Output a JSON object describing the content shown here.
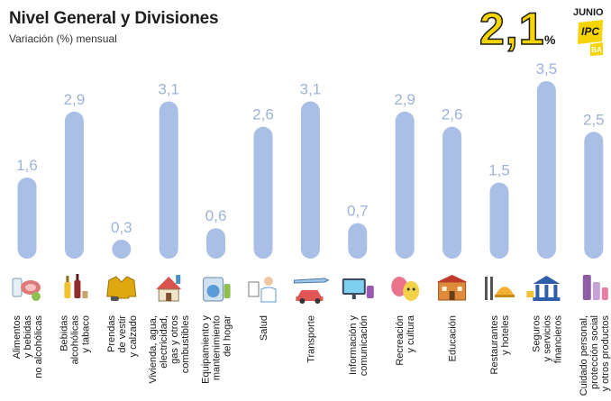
{
  "header": {
    "title": "Nivel General y Divisiones",
    "subtitle": "Variación (%) mensual",
    "headline_value": "2,1",
    "headline_unit": "%",
    "month": "JUNIO",
    "logo_text": "IPC",
    "logo_sub": "BA"
  },
  "colors": {
    "bar": "#a9bfe6",
    "value_text": "#9db3d8",
    "headline": "#f5d400",
    "logo": "#f5d400"
  },
  "chart_data": {
    "type": "bar",
    "title": "Nivel General y Divisiones",
    "subtitle": "Variación (%) mensual",
    "ylabel": "",
    "ylim": [
      0,
      3.5
    ],
    "grid": false,
    "categories": [
      [
        "Alimentos",
        "y bebidas",
        "no alcohólicas"
      ],
      [
        "Bebidas",
        "alcohólicas",
        "y tabaco"
      ],
      [
        "Prendas",
        "de vestir",
        "y calzado"
      ],
      [
        "Vivienda, agua,",
        "electricidad,",
        "gas y otros",
        "combustibles"
      ],
      [
        "Equipamiento y",
        "mantenimiento",
        "del hogar"
      ],
      [
        "Salud"
      ],
      [
        "Transporte"
      ],
      [
        "Información y",
        "comunicación"
      ],
      [
        "Recreación",
        "y cultura"
      ],
      [
        "Educación"
      ],
      [
        "Restaurantes",
        "y hoteles"
      ],
      [
        "Seguros",
        "y servicios",
        "financieros"
      ],
      [
        "Cuidado personal,",
        "protección social",
        "y otros productos"
      ]
    ],
    "values": [
      1.6,
      2.9,
      0.3,
      3.1,
      0.6,
      2.6,
      3.1,
      0.7,
      2.9,
      2.6,
      1.5,
      3.5,
      2.5
    ],
    "value_labels": [
      "1,6",
      "2,9",
      "0,3",
      "3,1",
      "0,6",
      "2,6",
      "3,1",
      "0,7",
      "2,9",
      "2,6",
      "1,5",
      "3,5",
      "2,5"
    ],
    "icons": [
      "food-icon",
      "drinks-icon",
      "clothing-icon",
      "house-icon",
      "washing-machine-icon",
      "doctor-icon",
      "plane-car-icon",
      "monitor-icon",
      "theater-masks-icon",
      "school-icon",
      "cutlery-cloche-icon",
      "bank-icon",
      "cosmetics-icon"
    ]
  }
}
